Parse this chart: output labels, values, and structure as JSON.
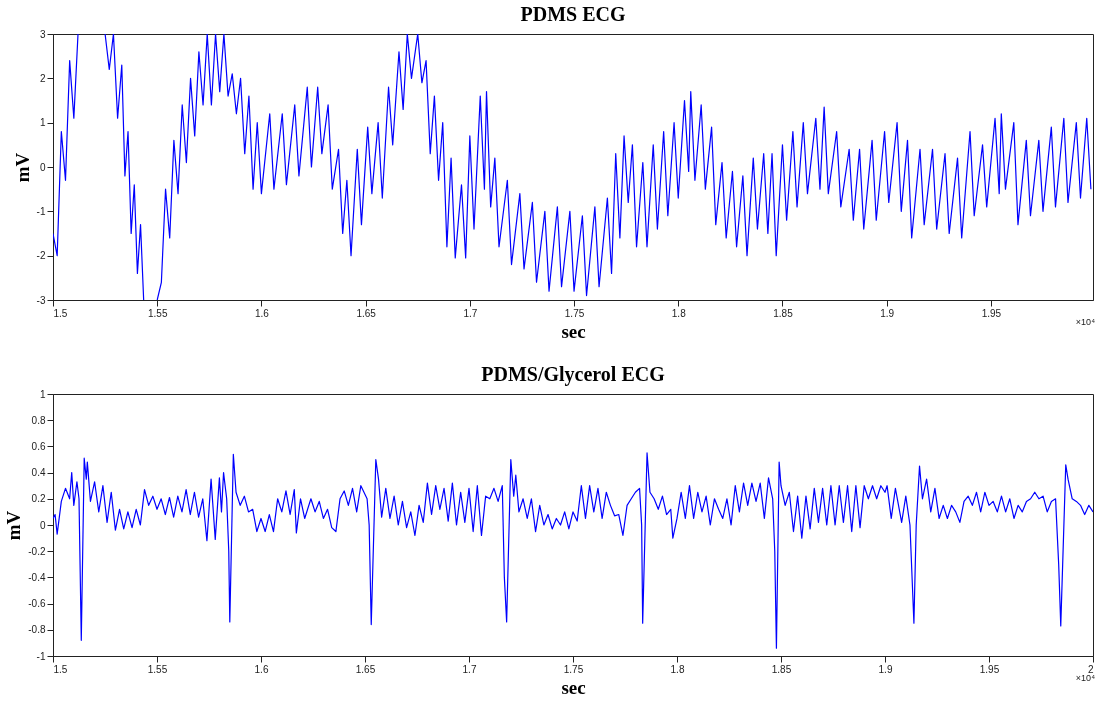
{
  "chart_data": [
    {
      "type": "line",
      "title": "PDMS ECG",
      "xlabel": "sec",
      "ylabel": "mV",
      "xlim": [
        1.5,
        1.999
      ],
      "xticks": [
        1.5,
        1.55,
        1.6,
        1.65,
        1.7,
        1.75,
        1.8,
        1.85,
        1.9,
        1.95
      ],
      "ylim": [
        -3,
        3
      ],
      "yticks": [
        -3,
        -2,
        -1,
        0,
        1,
        2,
        3
      ],
      "grid": false,
      "annotations": [
        "×10⁴"
      ],
      "series": [
        {
          "color": "#0000ff",
          "x": [
            1.5,
            1.502,
            1.504,
            1.506,
            1.508,
            1.51,
            1.512,
            1.518,
            1.525,
            1.527,
            1.529,
            1.531,
            1.533,
            1.5345,
            1.536,
            1.5375,
            1.539,
            1.5405,
            1.542,
            1.5435,
            1.547,
            1.55,
            1.552,
            1.554,
            1.556,
            1.558,
            1.56,
            1.562,
            1.564,
            1.566,
            1.568,
            1.57,
            1.572,
            1.574,
            1.576,
            1.578,
            1.58,
            1.582,
            1.584,
            1.586,
            1.588,
            1.59,
            1.592,
            1.594,
            1.596,
            1.598,
            1.6,
            1.604,
            1.606,
            1.61,
            1.612,
            1.616,
            1.618,
            1.622,
            1.624,
            1.627,
            1.629,
            1.632,
            1.634,
            1.637,
            1.639,
            1.641,
            1.643,
            1.646,
            1.648,
            1.651,
            1.653,
            1.656,
            1.658,
            1.661,
            1.663,
            1.666,
            1.668,
            1.67,
            1.672,
            1.675,
            1.677,
            1.679,
            1.681,
            1.683,
            1.685,
            1.687,
            1.689,
            1.691,
            1.693,
            1.696,
            1.698,
            1.7,
            1.702,
            1.705,
            1.707,
            1.708,
            1.71,
            1.712,
            1.714,
            1.718,
            1.72,
            1.724,
            1.726,
            1.73,
            1.732,
            1.736,
            1.738,
            1.742,
            1.744,
            1.748,
            1.75,
            1.754,
            1.756,
            1.76,
            1.762,
            1.766,
            1.768,
            1.77,
            1.772,
            1.774,
            1.776,
            1.778,
            1.78,
            1.783,
            1.785,
            1.788,
            1.79,
            1.793,
            1.795,
            1.798,
            1.8,
            1.803,
            1.805,
            1.806,
            1.808,
            1.811,
            1.813,
            1.816,
            1.818,
            1.821,
            1.823,
            1.826,
            1.828,
            1.831,
            1.833,
            1.836,
            1.838,
            1.841,
            1.843,
            1.845,
            1.847,
            1.85,
            1.852,
            1.855,
            1.857,
            1.86,
            1.862,
            1.866,
            1.868,
            1.87,
            1.872,
            1.876,
            1.878,
            1.882,
            1.884,
            1.887,
            1.889,
            1.893,
            1.895,
            1.899,
            1.901,
            1.905,
            1.907,
            1.91,
            1.912,
            1.916,
            1.918,
            1.922,
            1.924,
            1.928,
            1.93,
            1.934,
            1.936,
            1.94,
            1.942,
            1.946,
            1.948,
            1.952,
            1.954,
            1.955,
            1.957,
            1.961,
            1.963,
            1.967,
            1.969,
            1.973,
            1.975,
            1.979,
            1.981,
            1.985,
            1.987,
            1.991,
            1.993,
            1.996,
            1.998
          ],
          "line_style": "solid",
          "values": [
            -1.5,
            -2.0,
            0.8,
            -0.3,
            2.4,
            1.1,
            3,
            null,
            3,
            2.2,
            3,
            1.1,
            2.3,
            -0.2,
            0.8,
            -1.5,
            -0.4,
            -2.4,
            -1.3,
            -3,
            null,
            -3,
            -2.6,
            -0.5,
            -1.6,
            0.6,
            -0.6,
            1.4,
            0.1,
            2.0,
            0.7,
            2.6,
            1.4,
            3,
            1.4,
            3,
            1.7,
            3,
            1.6,
            2.1,
            1.2,
            2.0,
            0.3,
            1.6,
            -0.5,
            1.0,
            -0.6,
            1.2,
            -0.5,
            1.2,
            -0.4,
            1.4,
            -0.2,
            1.8,
            0.0,
            1.8,
            0.3,
            1.4,
            -0.5,
            0.4,
            -1.5,
            -0.3,
            -2.0,
            0.4,
            -1.3,
            0.9,
            -0.6,
            1.0,
            -0.7,
            1.8,
            0.5,
            2.6,
            1.3,
            3,
            2.0,
            3,
            1.9,
            2.4,
            0.3,
            1.6,
            -0.3,
            1.0,
            -1.8,
            0.2,
            -2.05,
            -0.4,
            -2.05,
            0.7,
            -1.4,
            1.6,
            -0.5,
            1.7,
            -0.9,
            0.2,
            -1.8,
            -0.3,
            -2.2,
            -0.6,
            -2.3,
            -0.8,
            -2.6,
            -1.0,
            -2.8,
            -0.9,
            -2.7,
            -1.0,
            -2.8,
            -1.1,
            -2.9,
            -0.9,
            -2.7,
            -0.7,
            -2.4,
            0.3,
            -1.6,
            0.7,
            -0.8,
            0.5,
            -1.8,
            0.1,
            -1.8,
            0.5,
            -1.4,
            0.8,
            -1.1,
            1.0,
            -0.7,
            1.5,
            -0.1,
            1.7,
            -0.3,
            1.4,
            -0.5,
            0.9,
            -1.3,
            0.1,
            -1.6,
            -0.1,
            -1.8,
            -0.2,
            -2.0,
            0.2,
            -1.4,
            0.3,
            -1.5,
            0.3,
            -2.0,
            0.5,
            -1.2,
            0.8,
            -0.9,
            1.0,
            -0.6,
            1.1,
            -0.5,
            1.35,
            -0.6,
            0.8,
            -0.9,
            0.4,
            -1.2,
            0.4,
            -1.4,
            0.6,
            -1.2,
            0.8,
            -0.8,
            1.0,
            -1.0,
            0.6,
            -1.6,
            0.4,
            -1.3,
            0.4,
            -1.4,
            0.3,
            -1.5,
            0.2,
            -1.6,
            0.8,
            -1.1,
            0.5,
            -0.9,
            1.1,
            -0.6,
            1.2,
            -0.5,
            1.0,
            -1.3,
            0.6,
            -1.1,
            0.6,
            -1.0,
            0.9,
            -0.9,
            1.1,
            -0.8,
            1.0,
            -0.7,
            1.1,
            -0.5
          ]
        }
      ]
    },
    {
      "type": "line",
      "title": "PDMS/Glycerol ECG",
      "xlabel": "sec",
      "ylabel": "mV",
      "xlim": [
        1.5,
        2
      ],
      "xticks": [
        1.5,
        1.55,
        1.6,
        1.65,
        1.7,
        1.75,
        1.8,
        1.85,
        1.9,
        1.95,
        2
      ],
      "ylim": [
        -1,
        1
      ],
      "yticks": [
        -1,
        -0.8,
        -0.6,
        -0.4,
        -0.2,
        0,
        0.2,
        0.4,
        0.6,
        0.8,
        1
      ],
      "grid": false,
      "annotations": [
        "×10⁴"
      ],
      "series": [
        {
          "color": "#0000ff",
          "x": [
            1.5,
            1.501,
            1.502,
            1.504,
            1.506,
            1.508,
            1.509,
            1.51,
            1.5115,
            1.5125,
            1.5136,
            1.515,
            1.516,
            1.5165,
            1.518,
            1.52,
            1.522,
            1.524,
            1.526,
            1.528,
            1.53,
            1.532,
            1.534,
            1.536,
            1.538,
            1.54,
            1.542,
            1.544,
            1.546,
            1.548,
            1.55,
            1.552,
            1.554,
            1.556,
            1.558,
            1.56,
            1.562,
            1.564,
            1.566,
            1.568,
            1.57,
            1.572,
            1.574,
            1.576,
            1.578,
            1.58,
            1.581,
            1.582,
            1.5835,
            1.5845,
            1.585,
            1.5867,
            1.588,
            1.59,
            1.592,
            1.594,
            1.596,
            1.598,
            1.6,
            1.602,
            1.604,
            1.606,
            1.608,
            1.61,
            1.612,
            1.614,
            1.616,
            1.617,
            1.619,
            1.621,
            1.624,
            1.626,
            1.628,
            1.63,
            1.632,
            1.634,
            1.636,
            1.638,
            1.64,
            1.642,
            1.644,
            1.646,
            1.648,
            1.651,
            1.652,
            1.653,
            1.6552,
            1.6565,
            1.658,
            1.66,
            1.662,
            1.664,
            1.666,
            1.668,
            1.67,
            1.672,
            1.674,
            1.676,
            1.678,
            1.68,
            1.682,
            1.684,
            1.686,
            1.688,
            1.69,
            1.692,
            1.694,
            1.696,
            1.698,
            1.7,
            1.702,
            1.704,
            1.706,
            1.708,
            1.71,
            1.712,
            1.714,
            1.716,
            1.717,
            1.7181,
            1.7201,
            1.7215,
            1.7225,
            1.724,
            1.726,
            1.728,
            1.73,
            1.732,
            1.734,
            1.736,
            1.738,
            1.74,
            1.742,
            1.744,
            1.746,
            1.748,
            1.75,
            1.752,
            1.754,
            1.756,
            1.758,
            1.76,
            1.762,
            1.764,
            1.766,
            1.768,
            1.77,
            1.772,
            1.774,
            1.776,
            1.778,
            1.78,
            1.782,
            1.783,
            1.7835,
            1.7856,
            1.787,
            1.789,
            1.791,
            1.793,
            1.795,
            1.797,
            1.798,
            1.8,
            1.802,
            1.804,
            1.806,
            1.808,
            1.81,
            1.812,
            1.814,
            1.816,
            1.818,
            1.82,
            1.822,
            1.824,
            1.826,
            1.828,
            1.83,
            1.832,
            1.834,
            1.836,
            1.838,
            1.84,
            1.842,
            1.844,
            1.846,
            1.847,
            1.8478,
            1.8491,
            1.85,
            1.852,
            1.854,
            1.856,
            1.858,
            1.86,
            1.862,
            1.864,
            1.866,
            1.868,
            1.87,
            1.872,
            1.874,
            1.876,
            1.878,
            1.88,
            1.882,
            1.884,
            1.886,
            1.888,
            1.89,
            1.892,
            1.894,
            1.896,
            1.898,
            1.9,
            1.901,
            1.903,
            1.905,
            1.908,
            1.91,
            1.912,
            1.9139,
            1.915,
            1.9166,
            1.918,
            1.92,
            1.922,
            1.924,
            1.926,
            1.928,
            1.93,
            1.932,
            1.934,
            1.936,
            1.938,
            1.94,
            1.942,
            1.944,
            1.946,
            1.948,
            1.95,
            1.952,
            1.954,
            1.956,
            1.958,
            1.96,
            1.962,
            1.964,
            1.966,
            1.968,
            1.97,
            1.972,
            1.974,
            1.976,
            1.978,
            1.98,
            1.982,
            1.9835,
            1.9845,
            1.9869,
            1.988,
            1.99,
            1.992,
            1.994,
            1.996,
            1.998,
            2
          ],
          "line_style": "solid",
          "values": [
            0.05,
            0.08,
            -0.07,
            0.18,
            0.28,
            0.2,
            0.4,
            0.15,
            0.33,
            0.2,
            -0.88,
            0.51,
            0.35,
            0.48,
            0.18,
            0.33,
            0.1,
            0.3,
            0.02,
            0.25,
            -0.04,
            0.12,
            -0.03,
            0.1,
            -0.02,
            0.12,
            0.0,
            0.27,
            0.15,
            0.22,
            0.12,
            0.2,
            0.08,
            0.21,
            0.06,
            0.22,
            0.1,
            0.27,
            0.08,
            0.25,
            0.06,
            0.2,
            -0.12,
            0.35,
            -0.11,
            0.36,
            0.1,
            0.4,
            0.2,
            -0.2,
            -0.74,
            0.54,
            0.25,
            0.15,
            0.22,
            0.1,
            0.12,
            -0.05,
            0.05,
            -0.05,
            0.08,
            -0.05,
            0.2,
            0.1,
            0.26,
            0.08,
            0.27,
            -0.06,
            0.2,
            0.05,
            0.2,
            0.1,
            0.18,
            0.05,
            0.12,
            -0.02,
            -0.05,
            0.2,
            0.26,
            0.15,
            0.28,
            0.1,
            0.3,
            0.2,
            0.0,
            -0.76,
            0.5,
            0.35,
            0.06,
            0.28,
            0.05,
            0.22,
            0.0,
            0.18,
            -0.02,
            0.1,
            -0.08,
            0.15,
            0.02,
            0.32,
            0.08,
            0.3,
            0.12,
            0.28,
            0.03,
            0.32,
            0.0,
            0.25,
            0.02,
            0.28,
            -0.05,
            0.3,
            -0.08,
            0.22,
            0.2,
            0.28,
            0.18,
            0.3,
            -0.4,
            -0.74,
            0.5,
            0.22,
            0.38,
            0.1,
            0.2,
            0.05,
            0.2,
            -0.05,
            0.15,
            0.0,
            0.08,
            -0.03,
            0.05,
            0.0,
            0.1,
            -0.03,
            0.1,
            0.03,
            0.3,
            0.05,
            0.3,
            0.1,
            0.28,
            0.05,
            0.25,
            0.15,
            0.07,
            0.08,
            -0.08,
            0.15,
            0.2,
            0.25,
            0.28,
            0.0,
            -0.75,
            0.55,
            0.25,
            0.2,
            0.12,
            0.22,
            0.08,
            0.12,
            -0.1,
            0.05,
            0.25,
            0.05,
            0.3,
            0.05,
            0.25,
            0.1,
            0.22,
            0.0,
            0.2,
            0.12,
            0.05,
            0.2,
            0.0,
            0.3,
            0.1,
            0.32,
            0.15,
            0.32,
            0.18,
            0.32,
            0.05,
            0.36,
            0.2,
            -0.2,
            -0.94,
            0.48,
            0.3,
            0.15,
            0.25,
            -0.05,
            0.22,
            -0.1,
            0.22,
            -0.03,
            0.28,
            0.02,
            0.28,
            0.0,
            0.3,
            0.0,
            0.3,
            0.02,
            0.3,
            -0.05,
            0.3,
            -0.02,
            0.3,
            0.2,
            0.3,
            0.2,
            0.3,
            0.25,
            0.3,
            0.05,
            0.28,
            0.02,
            0.22,
            0.0,
            -0.75,
            0.0,
            0.45,
            0.2,
            0.35,
            0.1,
            0.28,
            0.05,
            0.15,
            0.05,
            0.15,
            0.1,
            0.02,
            0.18,
            0.22,
            0.15,
            0.25,
            0.1,
            0.25,
            0.15,
            0.18,
            0.1,
            0.22,
            0.1,
            0.2,
            0.05,
            0.15,
            0.1,
            0.18,
            0.2,
            0.25,
            0.2,
            0.22,
            0.1,
            0.18,
            0.2,
            -0.3,
            -0.77,
            0.46,
            0.35,
            0.2,
            0.18,
            0.15,
            0.08,
            0.15,
            0.1
          ]
        }
      ]
    }
  ]
}
